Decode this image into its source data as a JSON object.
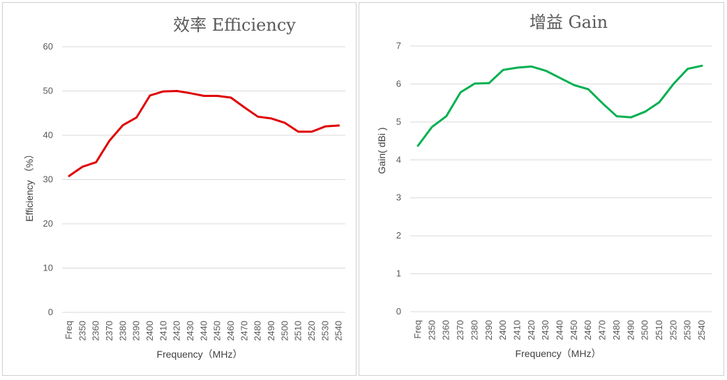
{
  "chart_data": [
    {
      "type": "line",
      "title": "效率 Efficiency",
      "xlabel": "Frequency（MHz）",
      "ylabel": "Efficiency （%）",
      "ylim": [
        0,
        60
      ],
      "yticks": [
        0,
        10,
        20,
        30,
        40,
        50,
        60
      ],
      "categories": [
        "Freq",
        "2350",
        "2360",
        "2370",
        "2380",
        "2390",
        "2400",
        "2410",
        "2420",
        "2430",
        "2440",
        "2450",
        "2460",
        "2470",
        "2480",
        "2490",
        "2500",
        "2510",
        "2520",
        "2530",
        "2540"
      ],
      "series": [
        {
          "color": "#e00000",
          "values": [
            30.8,
            32.9,
            33.9,
            38.8,
            42.3,
            44.0,
            49.0,
            49.9,
            50.0,
            49.5,
            48.9,
            48.9,
            48.5,
            46.3,
            44.2,
            43.8,
            42.8,
            40.8,
            40.8,
            42.0,
            42.2
          ]
        }
      ],
      "grid": true,
      "legend": "none"
    },
    {
      "type": "line",
      "title": "增益 Gain",
      "xlabel": "Frequency（MHz）",
      "ylabel": "Gain( dBi )",
      "ylim": [
        0,
        7
      ],
      "yticks": [
        0,
        1,
        2,
        3,
        4,
        5,
        6,
        7
      ],
      "categories": [
        "Freq",
        "2350",
        "2360",
        "2370",
        "2380",
        "2390",
        "2400",
        "2410",
        "2420",
        "2430",
        "2440",
        "2450",
        "2460",
        "2470",
        "2480",
        "2490",
        "2500",
        "2510",
        "2520",
        "2530",
        "2540"
      ],
      "series": [
        {
          "color": "#00b050",
          "values": [
            4.37,
            4.87,
            5.15,
            5.78,
            6.01,
            6.02,
            6.37,
            6.43,
            6.46,
            6.35,
            6.16,
            5.97,
            5.86,
            5.49,
            5.15,
            5.12,
            5.27,
            5.52,
            6.0,
            6.4,
            6.48
          ]
        }
      ],
      "grid": true,
      "legend": "none"
    }
  ]
}
